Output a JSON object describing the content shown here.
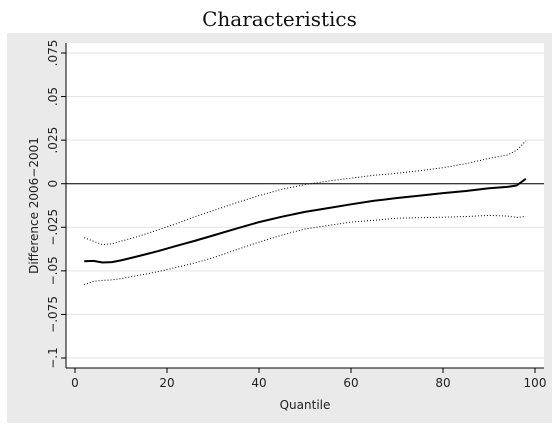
{
  "chart_data": {
    "type": "line",
    "title": "Characteristics",
    "xlabel": "Quantile",
    "ylabel": "Difference 2006−2001",
    "xlim": [
      0,
      100
    ],
    "ylim": [
      -0.1,
      0.075
    ],
    "xticks": [
      0,
      20,
      40,
      60,
      80,
      100
    ],
    "xtick_labels": [
      "0",
      "20",
      "40",
      "60",
      "80",
      "100"
    ],
    "yticks": [
      -0.1,
      -0.075,
      -0.05,
      -0.025,
      0,
      0.025,
      0.05,
      0.075
    ],
    "ytick_labels": [
      "−.1",
      "−.075",
      "−.05",
      "−.025",
      "0",
      ".025",
      ".05",
      ".075"
    ],
    "grid": true,
    "reference_line_y": 0,
    "series": [
      {
        "style": "solid",
        "x": [
          2,
          4,
          6,
          8,
          10,
          14,
          18,
          22,
          26,
          30,
          35,
          40,
          45,
          50,
          55,
          60,
          65,
          70,
          75,
          80,
          85,
          90,
          94,
          96,
          98
        ],
        "y": [
          -0.0445,
          -0.0443,
          -0.0452,
          -0.045,
          -0.044,
          -0.0414,
          -0.0387,
          -0.0357,
          -0.0328,
          -0.0297,
          -0.0258,
          -0.022,
          -0.0189,
          -0.0162,
          -0.014,
          -0.0118,
          -0.0098,
          -0.0082,
          -0.0068,
          -0.0054,
          -0.0042,
          -0.0026,
          -0.0018,
          -0.001,
          0.0028
        ]
      },
      {
        "style": "dotted",
        "x": [
          2,
          4,
          6,
          8,
          10,
          14,
          18,
          22,
          26,
          30,
          35,
          40,
          45,
          50,
          55,
          60,
          65,
          70,
          75,
          80,
          85,
          90,
          94,
          96,
          98
        ],
        "y": [
          -0.031,
          -0.033,
          -0.035,
          -0.0345,
          -0.033,
          -0.03,
          -0.0265,
          -0.023,
          -0.019,
          -0.0155,
          -0.011,
          -0.0068,
          -0.0032,
          -0.0005,
          0.0015,
          0.0032,
          0.0048,
          0.006,
          0.0075,
          0.0092,
          0.0115,
          0.0145,
          0.0165,
          0.0192,
          0.0245
        ]
      },
      {
        "style": "dotted",
        "x": [
          2,
          4,
          6,
          8,
          10,
          14,
          18,
          22,
          26,
          30,
          35,
          40,
          45,
          50,
          55,
          60,
          65,
          70,
          75,
          80,
          85,
          90,
          94,
          96,
          98
        ],
        "y": [
          -0.058,
          -0.056,
          -0.0555,
          -0.0552,
          -0.0545,
          -0.0525,
          -0.0505,
          -0.048,
          -0.0455,
          -0.0425,
          -0.038,
          -0.0335,
          -0.0295,
          -0.026,
          -0.024,
          -0.022,
          -0.021,
          -0.0198,
          -0.0195,
          -0.0192,
          -0.0188,
          -0.0182,
          -0.0186,
          -0.0193,
          -0.0188
        ]
      }
    ]
  }
}
